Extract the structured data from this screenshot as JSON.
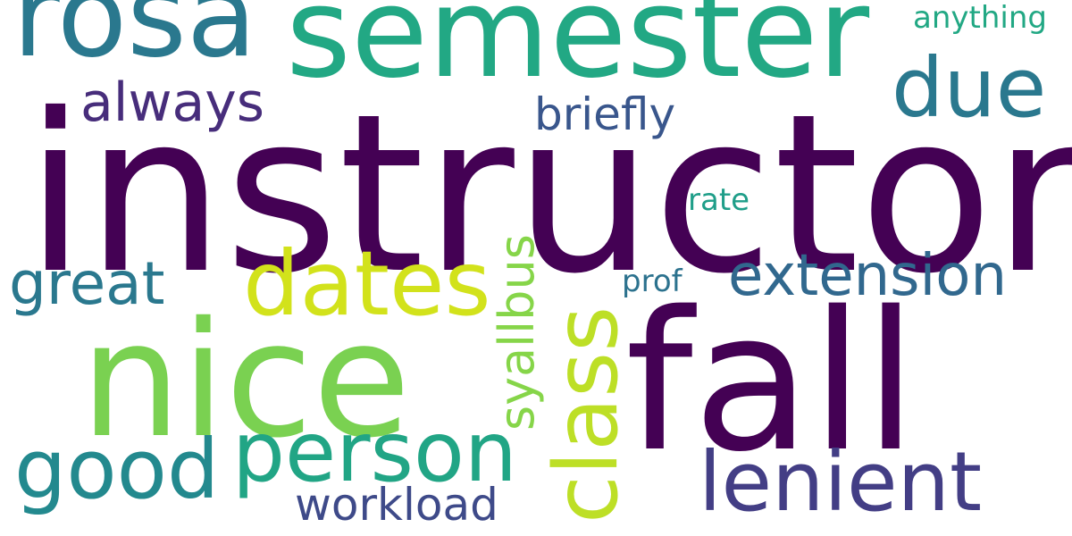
{
  "cloud": {
    "words": {
      "instructor": {
        "text": "instructor",
        "color": "#440154"
      },
      "fall": {
        "text": "fall",
        "color": "#440154"
      },
      "nice": {
        "text": "nice",
        "color": "#7ad151"
      },
      "semester": {
        "text": "semester",
        "color": "#22a884"
      },
      "rosa": {
        "text": "rosa",
        "color": "#2a788e"
      },
      "dates": {
        "text": "dates",
        "color": "#d2e21b"
      },
      "person": {
        "text": "person",
        "color": "#21a585"
      },
      "good": {
        "text": "good",
        "color": "#23898e"
      },
      "lenient": {
        "text": "lenient",
        "color": "#433e85"
      },
      "due": {
        "text": "due",
        "color": "#2a788e"
      },
      "class": {
        "text": "class",
        "color": "#bddf26"
      },
      "syallbus": {
        "text": "syallbus",
        "color": "#86d549"
      },
      "extension": {
        "text": "extension",
        "color": "#31688e"
      },
      "great": {
        "text": "great",
        "color": "#2a788e"
      },
      "always": {
        "text": "always",
        "color": "#472d7b"
      },
      "briefly": {
        "text": "briefly",
        "color": "#39568c"
      },
      "workload": {
        "text": "workload",
        "color": "#3e4a89"
      },
      "anything": {
        "text": "anything",
        "color": "#22a884"
      },
      "rate": {
        "text": "rate",
        "color": "#1f9e89"
      },
      "prof": {
        "text": "prof",
        "color": "#2c728e"
      }
    }
  }
}
